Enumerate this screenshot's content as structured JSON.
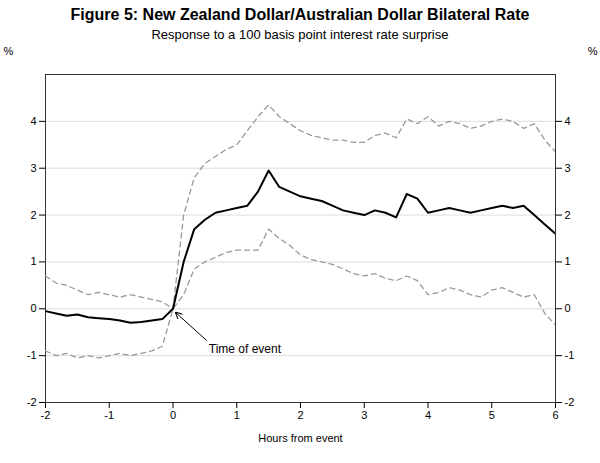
{
  "chart_data": {
    "type": "line",
    "title": "Figure 5: New Zealand Dollar/Australian Dollar Bilateral Rate",
    "subtitle": "Response to a 100 basis point interest rate surprise",
    "xlabel": "Hours from event",
    "ylabel": "%",
    "y2label": "%",
    "xlim": [
      -2,
      6
    ],
    "ylim": [
      -2,
      5
    ],
    "xticks": [
      -2,
      -1,
      0,
      1,
      2,
      3,
      4,
      5,
      6
    ],
    "yticks": [
      -2,
      -1,
      0,
      1,
      2,
      3,
      4
    ],
    "y2ticks": [
      -2,
      -1,
      0,
      1,
      2,
      3,
      4
    ],
    "grid": true,
    "x": [
      -2.0,
      -1.833,
      -1.667,
      -1.5,
      -1.333,
      -1.167,
      -1.0,
      -0.833,
      -0.667,
      -0.5,
      -0.333,
      -0.167,
      0.0,
      0.167,
      0.333,
      0.5,
      0.667,
      0.833,
      1.0,
      1.167,
      1.333,
      1.5,
      1.667,
      1.833,
      2.0,
      2.167,
      2.333,
      2.5,
      2.667,
      2.833,
      3.0,
      3.167,
      3.333,
      3.5,
      3.667,
      3.833,
      4.0,
      4.167,
      4.333,
      4.5,
      4.667,
      4.833,
      5.0,
      5.167,
      5.333,
      5.5,
      5.667,
      5.833,
      6.0
    ],
    "series": [
      {
        "color": "#999999",
        "line_style": "dashed",
        "values": [
          0.7,
          0.55,
          0.5,
          0.4,
          0.3,
          0.35,
          0.3,
          0.25,
          0.3,
          0.25,
          0.2,
          0.15,
          0.0,
          2.0,
          2.8,
          3.1,
          3.25,
          3.4,
          3.5,
          3.8,
          4.1,
          4.35,
          4.1,
          3.95,
          3.8,
          3.7,
          3.65,
          3.6,
          3.6,
          3.55,
          3.55,
          3.7,
          3.75,
          3.65,
          4.05,
          3.95,
          4.1,
          3.9,
          4.0,
          3.95,
          3.85,
          3.9,
          4.0,
          4.05,
          4.0,
          3.85,
          3.95,
          3.6,
          3.35
        ]
      },
      {
        "color": "#999999",
        "line_style": "dashed",
        "values": [
          -0.9,
          -1.0,
          -0.95,
          -1.05,
          -1.0,
          -1.05,
          -1.0,
          -0.95,
          -1.0,
          -0.95,
          -0.9,
          -0.8,
          0.0,
          0.3,
          0.85,
          1.0,
          1.1,
          1.2,
          1.25,
          1.25,
          1.25,
          1.7,
          1.5,
          1.35,
          1.15,
          1.05,
          1.0,
          0.95,
          0.85,
          0.75,
          0.7,
          0.75,
          0.65,
          0.6,
          0.7,
          0.6,
          0.3,
          0.35,
          0.45,
          0.4,
          0.3,
          0.25,
          0.4,
          0.45,
          0.35,
          0.25,
          0.3,
          -0.1,
          -0.35
        ]
      },
      {
        "color": "#000000",
        "line_style": "solid",
        "values": [
          -0.05,
          -0.1,
          -0.15,
          -0.12,
          -0.18,
          -0.2,
          -0.22,
          -0.25,
          -0.3,
          -0.28,
          -0.25,
          -0.22,
          0.0,
          1.0,
          1.7,
          1.9,
          2.05,
          2.1,
          2.15,
          2.2,
          2.5,
          2.95,
          2.6,
          2.5,
          2.4,
          2.35,
          2.3,
          2.2,
          2.1,
          2.05,
          2.0,
          2.1,
          2.05,
          1.95,
          2.45,
          2.35,
          2.05,
          2.1,
          2.15,
          2.1,
          2.05,
          2.1,
          2.15,
          2.2,
          2.15,
          2.2,
          2.0,
          1.8,
          1.6
        ]
      }
    ],
    "annotations": [
      {
        "text": "Time of event",
        "x": 0.02,
        "y": -0.05
      }
    ]
  }
}
